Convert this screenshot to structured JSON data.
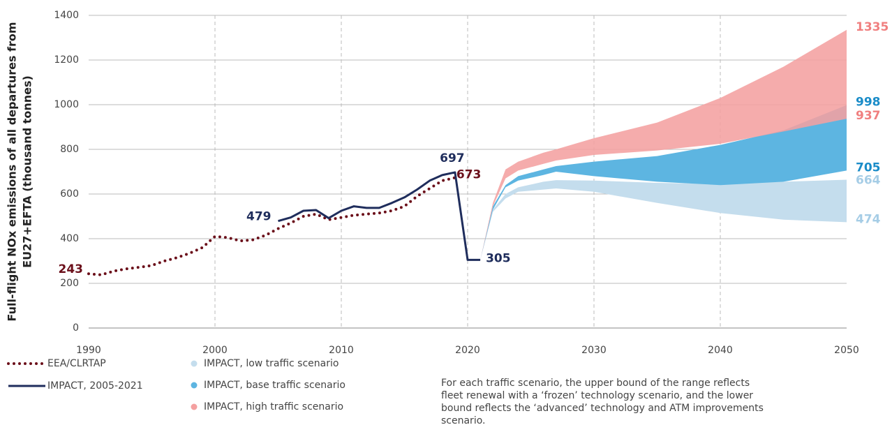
{
  "chart_data": {
    "type": "line",
    "ylabel": [
      "Full-flight NOx emissions of all departures from",
      "EU27+EFTA (thousand tonnes)"
    ],
    "xlim": [
      1990,
      2050
    ],
    "ylim": [
      0,
      1400
    ],
    "xticks": [
      1990,
      2000,
      2010,
      2020,
      2030,
      2040,
      2050
    ],
    "yticks": [
      0,
      200,
      400,
      600,
      800,
      1000,
      1200,
      1400
    ],
    "grid": true,
    "series": [
      {
        "name": "EEA/CLRTAP",
        "color": "#6b0f1a",
        "style": "dotted",
        "x": [
          1990,
          1991,
          1992,
          1993,
          1994,
          1995,
          1996,
          1997,
          1998,
          1999,
          2000,
          2001,
          2002,
          2003,
          2004,
          2005,
          2006,
          2007,
          2008,
          2009,
          2010,
          2011,
          2012,
          2013,
          2014,
          2015,
          2016,
          2017,
          2018,
          2019
        ],
        "values": [
          243,
          238,
          255,
          265,
          272,
          280,
          300,
          315,
          335,
          360,
          410,
          405,
          390,
          395,
          415,
          445,
          470,
          500,
          510,
          485,
          495,
          505,
          510,
          515,
          525,
          545,
          590,
          625,
          660,
          673
        ]
      },
      {
        "name": "IMPACT, 2005-2021",
        "color": "#1f2d5c",
        "style": "solid",
        "x": [
          2005,
          2006,
          2007,
          2008,
          2009,
          2010,
          2011,
          2012,
          2013,
          2014,
          2015,
          2016,
          2017,
          2018,
          2019,
          2020,
          2021
        ],
        "values": [
          479,
          495,
          525,
          528,
          492,
          525,
          545,
          538,
          538,
          560,
          585,
          620,
          660,
          685,
          697,
          305,
          305
        ]
      }
    ],
    "bands": [
      {
        "name": "IMPACT, low traffic scenario",
        "color": "#c4dded",
        "label_color": "#a6cde6",
        "x": [
          2021,
          2022,
          2023,
          2024,
          2026,
          2027,
          2030,
          2035,
          2040,
          2045,
          2050
        ],
        "upper": [
          305,
          530,
          600,
          630,
          655,
          662,
          660,
          650,
          645,
          655,
          664
        ],
        "lower": [
          305,
          520,
          580,
          610,
          620,
          625,
          610,
          560,
          515,
          485,
          474
        ]
      },
      {
        "name": "IMPACT, base traffic scenario",
        "color": "#5db5e1",
        "label_color": "#1a8cc8",
        "x": [
          2021,
          2022,
          2023,
          2024,
          2026,
          2027,
          2030,
          2035,
          2040,
          2045,
          2050
        ],
        "upper": [
          305,
          545,
          640,
          680,
          710,
          725,
          745,
          770,
          820,
          885,
          998
        ],
        "lower": [
          305,
          530,
          630,
          660,
          685,
          700,
          680,
          655,
          640,
          655,
          705
        ]
      },
      {
        "name": "IMPACT, high traffic scenario",
        "color": "#f4a0a0",
        "label_color": "#f07f7f",
        "x": [
          2021,
          2022,
          2023,
          2024,
          2026,
          2027,
          2030,
          2035,
          2040,
          2045,
          2050
        ],
        "upper": [
          305,
          560,
          710,
          745,
          785,
          800,
          850,
          920,
          1030,
          1170,
          1335
        ],
        "lower": [
          305,
          545,
          670,
          705,
          735,
          750,
          775,
          795,
          825,
          880,
          937
        ]
      }
    ],
    "note": "For each traffic scenario, the upper bound of the range reflects fleet renewal with a ‘frozen’ technology scenario, and the lower bound reflects the ‘advanced’ technology and ATM improvements scenario."
  }
}
